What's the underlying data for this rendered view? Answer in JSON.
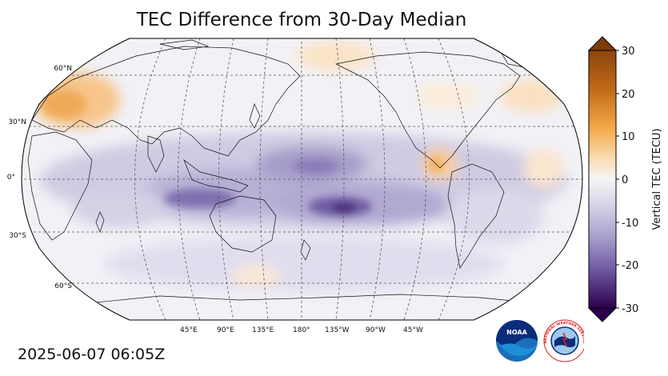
{
  "title": "TEC Difference from 30-Day Median",
  "timestamp": "2025-06-07 06:05Z",
  "map": {
    "projection": "Robinson",
    "central_longitude": 180,
    "lat_labels": [
      "60°N",
      "30°N",
      "0°",
      "30°S",
      "60°S"
    ],
    "lon_labels": [
      "45°E",
      "90°E",
      "135°E",
      "180°",
      "135°W",
      "90°W",
      "45°W"
    ]
  },
  "colorbar": {
    "label": "Vertical TEC (TECU)",
    "ticks": [
      "30",
      "20",
      "10",
      "0",
      "-10",
      "-20",
      "-30"
    ],
    "range": [
      -30,
      30
    ],
    "colors": {
      "max": "#7f3b08",
      "mid_positive": "#f1a340",
      "zero": "#f7f7f7",
      "mid_negative": "#998ec3",
      "min": "#2d004b"
    }
  },
  "logos": {
    "noaa_text": "NOAA",
    "nws_text": "NATIONAL WEATHER SERVICE"
  },
  "colors": {
    "positive_anomaly": "#f6b26b",
    "negative_anomaly": "#7a6aa8",
    "strong_negative": "#4b2c7a",
    "map_background": "#f2f2f6"
  }
}
